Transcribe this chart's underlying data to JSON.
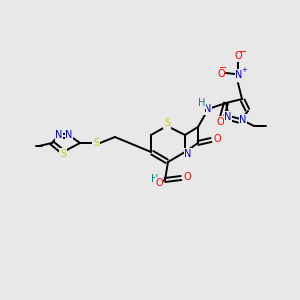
{
  "background_color": "#e8e8e8",
  "bond_color": "#000000",
  "atom_colors": {
    "N": "#0000cc",
    "O": "#ff0000",
    "S": "#cccc00",
    "C": "#000000",
    "H": "#008080"
  },
  "figsize": [
    3.0,
    3.0
  ],
  "dpi": 100
}
